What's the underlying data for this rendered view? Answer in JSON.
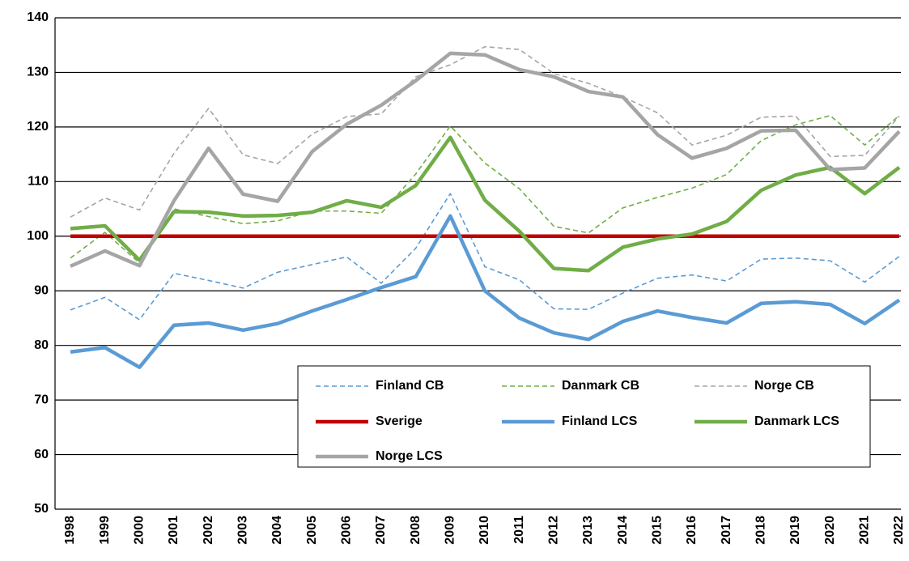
{
  "chart_data": {
    "type": "line",
    "categories": [
      "1998",
      "1999",
      "2000",
      "2001",
      "2002",
      "2003",
      "2004",
      "2005",
      "2006",
      "2007",
      "2008",
      "2009",
      "2010",
      "2011",
      "2012",
      "2013",
      "2014",
      "2015",
      "2016",
      "2017",
      "2018",
      "2019",
      "2020",
      "2021",
      "2022"
    ],
    "series": [
      {
        "name": "Finland CB",
        "color": "#5b9bd5",
        "style": "dashed",
        "values": [
          86.5,
          88.8,
          84.7,
          93.2,
          91.9,
          90.5,
          93.4,
          94.8,
          96.2,
          91.4,
          97.8,
          107.8,
          94.4,
          92,
          86.7,
          86.6,
          89.6,
          92.3,
          92.9,
          91.8,
          95.8,
          96,
          95.5,
          91.6,
          96.3
        ]
      },
      {
        "name": "Danmark CB",
        "color": "#70ad47",
        "style": "dashed",
        "values": [
          96,
          100.7,
          95.1,
          105,
          103.6,
          102.3,
          102.8,
          104.6,
          104.6,
          104.2,
          111.4,
          120.2,
          113.4,
          108.7,
          101.8,
          100.6,
          105.2,
          107.1,
          108.8,
          111.3,
          117.5,
          120.4,
          122.1,
          116.7,
          122.1
        ]
      },
      {
        "name": "Norge CB",
        "color": "#a5a5a5",
        "style": "dashed",
        "values": [
          103.5,
          107,
          104.8,
          115.2,
          123.4,
          114.9,
          113.3,
          118.7,
          121.9,
          122.4,
          129.2,
          131.4,
          134.7,
          134.2,
          129.8,
          128,
          125.5,
          122.6,
          116.7,
          118.5,
          121.8,
          122,
          114.6,
          114.8,
          122
        ]
      },
      {
        "name": "Sverige",
        "color": "#c00000",
        "style": "solid",
        "values": [
          100,
          100,
          100,
          100,
          100,
          100,
          100,
          100,
          100,
          100,
          100,
          100,
          100,
          100,
          100,
          100,
          100,
          100,
          100,
          100,
          100,
          100,
          100,
          100,
          100
        ]
      },
      {
        "name": "Finland LCS",
        "color": "#5b9bd5",
        "style": "solid",
        "values": [
          78.8,
          79.6,
          76,
          83.7,
          84.1,
          82.8,
          84,
          86.3,
          88.4,
          90.6,
          92.6,
          103.7,
          90,
          85,
          82.3,
          81.1,
          84.4,
          86.3,
          85.1,
          84.1,
          87.7,
          88,
          87.5,
          84,
          88.3
        ]
      },
      {
        "name": "Danmark LCS",
        "color": "#70ad47",
        "style": "solid",
        "values": [
          101.4,
          101.9,
          95.6,
          104.5,
          104.4,
          103.7,
          103.8,
          104.4,
          106.5,
          105.3,
          109.3,
          118.1,
          106.6,
          100.9,
          94.1,
          93.7,
          98,
          99.5,
          100.4,
          102.7,
          108.4,
          111.2,
          112.6,
          107.8,
          112.6
        ]
      },
      {
        "name": "Norge LCS",
        "color": "#a5a5a5",
        "style": "solid",
        "values": [
          94.5,
          97.3,
          94.6,
          106.5,
          116.1,
          107.7,
          106.4,
          115.5,
          120.5,
          124,
          128.5,
          133.5,
          133.2,
          130.5,
          129.2,
          126.5,
          125.5,
          118.6,
          114.3,
          116.1,
          119.3,
          119.4,
          112.2,
          112.5,
          119.2
        ]
      }
    ],
    "ylim": [
      50,
      140
    ],
    "yticks": [
      50,
      60,
      70,
      80,
      90,
      100,
      110,
      120,
      130,
      140
    ],
    "grid": true,
    "legend": "lower right"
  }
}
